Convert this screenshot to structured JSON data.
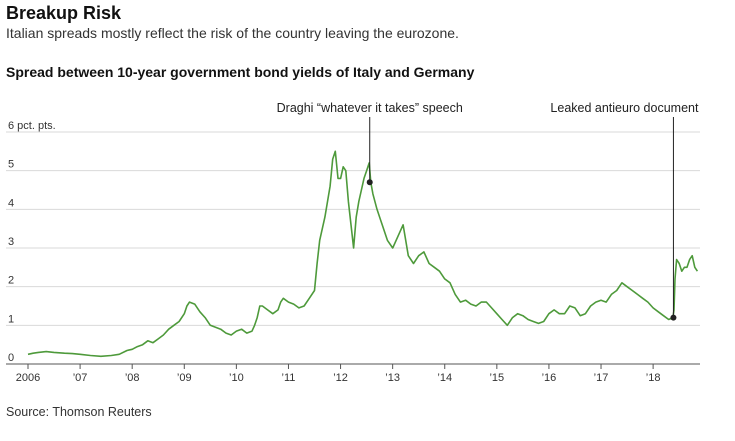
{
  "header": {
    "title": "Breakup Risk",
    "subtitle": "Italian spreads mostly reflect the risk of the country leaving the eurozone.",
    "chart_title": "Spread between 10-year government bond yields of Italy and Germany",
    "source": "Source: Thomson Reuters"
  },
  "colors": {
    "line": "#4e9a3b",
    "grid": "#d9d9d9",
    "annotation": "#222222"
  },
  "chart_data": {
    "type": "line",
    "title": "Spread between 10-year government bond yields of Italy and Germany",
    "xlabel": "",
    "ylabel": "",
    "xlim": [
      2006.0,
      2018.9
    ],
    "ylim": [
      0,
      6
    ],
    "y_ticks": [
      {
        "value": 0,
        "label": "0"
      },
      {
        "value": 1,
        "label": "1"
      },
      {
        "value": 2,
        "label": "2"
      },
      {
        "value": 3,
        "label": "3"
      },
      {
        "value": 4,
        "label": "4"
      },
      {
        "value": 5,
        "label": "5"
      },
      {
        "value": 6,
        "label": "6 pct. pts."
      }
    ],
    "x_ticks": [
      {
        "value": 2006,
        "label": "2006"
      },
      {
        "value": 2007,
        "label": "’07"
      },
      {
        "value": 2008,
        "label": "’08"
      },
      {
        "value": 2009,
        "label": "’09"
      },
      {
        "value": 2010,
        "label": "’10"
      },
      {
        "value": 2011,
        "label": "’11"
      },
      {
        "value": 2012,
        "label": "’12"
      },
      {
        "value": 2013,
        "label": "’13"
      },
      {
        "value": 2014,
        "label": "’14"
      },
      {
        "value": 2015,
        "label": "’15"
      },
      {
        "value": 2016,
        "label": "’16"
      },
      {
        "value": 2017,
        "label": "’17"
      },
      {
        "value": 2018,
        "label": "’18"
      }
    ],
    "grid": true,
    "series": [
      {
        "name": "",
        "x": [
          2006.0,
          2006.1,
          2006.2,
          2006.35,
          2006.5,
          2006.7,
          2006.85,
          2007.0,
          2007.2,
          2007.4,
          2007.6,
          2007.75,
          2007.9,
          2008.0,
          2008.1,
          2008.2,
          2008.3,
          2008.4,
          2008.5,
          2008.6,
          2008.7,
          2008.8,
          2008.9,
          2009.0,
          2009.05,
          2009.1,
          2009.2,
          2009.3,
          2009.4,
          2009.5,
          2009.6,
          2009.7,
          2009.8,
          2009.9,
          2010.0,
          2010.1,
          2010.2,
          2010.3,
          2010.35,
          2010.4,
          2010.45,
          2010.5,
          2010.6,
          2010.7,
          2010.8,
          2010.85,
          2010.9,
          2011.0,
          2011.1,
          2011.2,
          2011.3,
          2011.4,
          2011.5,
          2011.55,
          2011.6,
          2011.7,
          2011.8,
          2011.85,
          2011.9,
          2011.95,
          2012.0,
          2012.05,
          2012.1,
          2012.15,
          2012.2,
          2012.25,
          2012.3,
          2012.35,
          2012.4,
          2012.45,
          2012.5,
          2012.55,
          2012.58,
          2012.62,
          2012.7,
          2012.8,
          2012.9,
          2013.0,
          2013.1,
          2013.2,
          2013.3,
          2013.4,
          2013.5,
          2013.6,
          2013.7,
          2013.8,
          2013.9,
          2014.0,
          2014.1,
          2014.2,
          2014.3,
          2014.4,
          2014.5,
          2014.6,
          2014.7,
          2014.8,
          2014.9,
          2015.0,
          2015.1,
          2015.2,
          2015.3,
          2015.4,
          2015.5,
          2015.6,
          2015.7,
          2015.8,
          2015.9,
          2016.0,
          2016.1,
          2016.2,
          2016.3,
          2016.4,
          2016.5,
          2016.6,
          2016.7,
          2016.8,
          2016.9,
          2017.0,
          2017.1,
          2017.2,
          2017.3,
          2017.4,
          2017.5,
          2017.6,
          2017.7,
          2017.8,
          2017.9,
          2018.0,
          2018.1,
          2018.2,
          2018.3,
          2018.38,
          2018.4,
          2018.42,
          2018.45,
          2018.5,
          2018.55,
          2018.6,
          2018.65,
          2018.7,
          2018.75,
          2018.8,
          2018.85
        ],
        "values": [
          0.25,
          0.28,
          0.3,
          0.32,
          0.3,
          0.28,
          0.27,
          0.25,
          0.22,
          0.2,
          0.22,
          0.25,
          0.35,
          0.38,
          0.45,
          0.5,
          0.6,
          0.55,
          0.65,
          0.75,
          0.9,
          1.0,
          1.1,
          1.3,
          1.5,
          1.6,
          1.55,
          1.35,
          1.2,
          1.0,
          0.95,
          0.9,
          0.8,
          0.75,
          0.85,
          0.9,
          0.8,
          0.85,
          1.0,
          1.2,
          1.5,
          1.5,
          1.4,
          1.3,
          1.4,
          1.6,
          1.7,
          1.6,
          1.55,
          1.45,
          1.5,
          1.7,
          1.9,
          2.6,
          3.2,
          3.8,
          4.6,
          5.3,
          5.5,
          4.8,
          4.8,
          5.1,
          5.0,
          4.2,
          3.6,
          3.0,
          3.8,
          4.2,
          4.5,
          4.8,
          5.0,
          5.2,
          4.7,
          4.4,
          4.0,
          3.6,
          3.2,
          3.0,
          3.3,
          3.6,
          2.8,
          2.6,
          2.8,
          2.9,
          2.6,
          2.5,
          2.4,
          2.2,
          2.1,
          1.8,
          1.6,
          1.65,
          1.55,
          1.5,
          1.6,
          1.6,
          1.45,
          1.3,
          1.15,
          1.0,
          1.2,
          1.3,
          1.25,
          1.15,
          1.1,
          1.05,
          1.1,
          1.3,
          1.4,
          1.3,
          1.3,
          1.5,
          1.45,
          1.25,
          1.3,
          1.5,
          1.6,
          1.65,
          1.6,
          1.8,
          1.9,
          2.1,
          2.0,
          1.9,
          1.8,
          1.7,
          1.6,
          1.45,
          1.35,
          1.25,
          1.15,
          1.2,
          1.4,
          2.2,
          2.7,
          2.6,
          2.4,
          2.5,
          2.5,
          2.7,
          2.8,
          2.5,
          2.4
        ]
      }
    ],
    "annotations": [
      {
        "label": "Draghi “whatever it takes” speech",
        "x": 2012.56,
        "y": 4.7
      },
      {
        "label": "Leaked antieuro document",
        "x": 2018.39,
        "y": 1.2
      }
    ]
  }
}
